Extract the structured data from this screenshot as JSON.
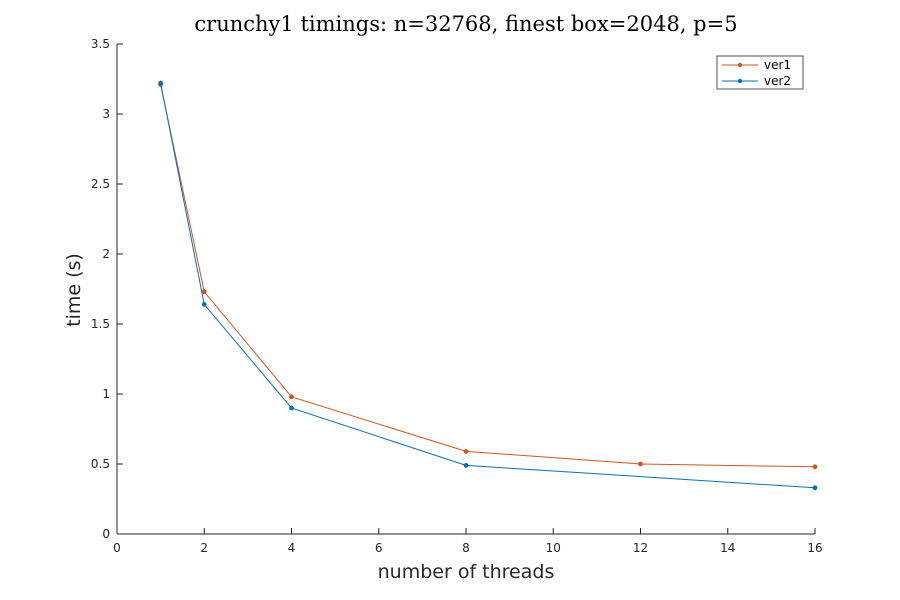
{
  "chart_data": {
    "type": "line",
    "title": "crunchy1 timings: n=32768, finest box=2048, p=5",
    "xlabel": "number of threads",
    "ylabel": "time (s)",
    "xlim": [
      0,
      16
    ],
    "ylim": [
      0,
      3.5
    ],
    "xticks": [
      0,
      2,
      4,
      6,
      8,
      10,
      12,
      14,
      16
    ],
    "xtick_labels": [
      "0",
      "2",
      "4",
      "6",
      "8",
      "10",
      "12",
      "14",
      "16"
    ],
    "yticks": [
      0,
      0.5,
      1,
      1.5,
      2,
      2.5,
      3,
      3.5
    ],
    "ytick_labels": [
      "0",
      "0.5",
      "1",
      "1.5",
      "2",
      "2.5",
      "3",
      "3.5"
    ],
    "grid": false,
    "legend_position": "top-right",
    "series": [
      {
        "name": "ver1",
        "color": "#D95319",
        "x": [
          1,
          2,
          4,
          8,
          12,
          16
        ],
        "y": [
          3.21,
          1.73,
          0.98,
          0.59,
          0.5,
          0.48
        ]
      },
      {
        "name": "ver2",
        "color": "#0072BD",
        "x": [
          1,
          2,
          4,
          8,
          12,
          16
        ],
        "y": [
          3.22,
          1.64,
          0.9,
          0.49,
          null,
          0.33
        ]
      }
    ]
  }
}
